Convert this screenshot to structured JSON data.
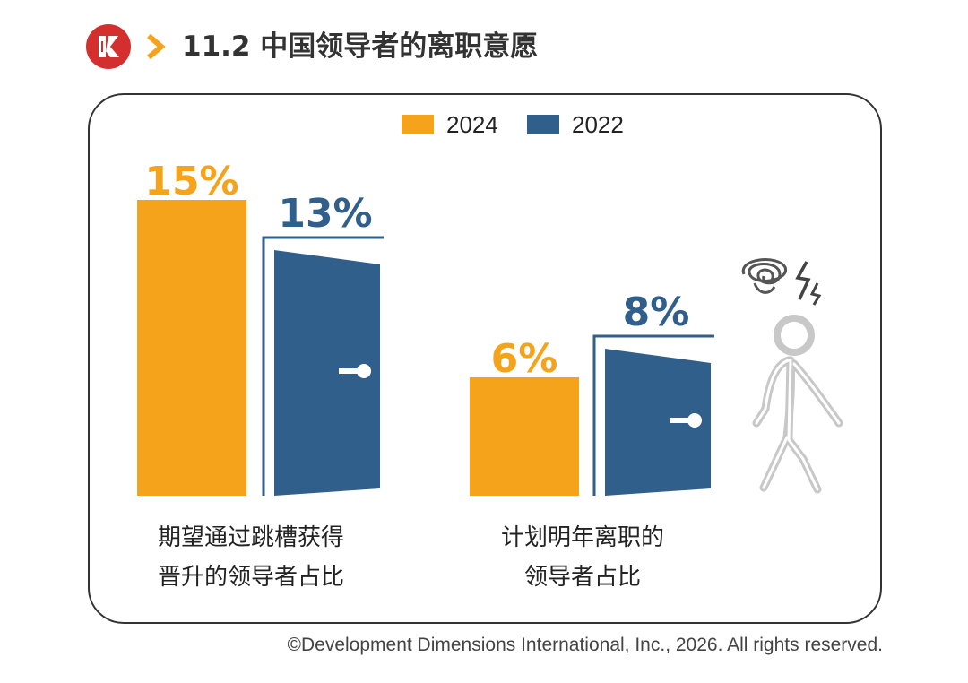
{
  "header": {
    "title": "11.2 中国领导者的离职意愿",
    "logo_icon": "ddi-logo-icon",
    "chevron_icon": "chevron-right-icon"
  },
  "colors": {
    "y2024": "#f5a31a",
    "y2022": "#2f5f8a",
    "logo": "#d32f2f",
    "chevron": "#f5a31a"
  },
  "chart_data": {
    "type": "bar",
    "categories": [
      "期望通过跳槽获得\n晋升的领导者占比",
      "计划明年离职的\n领导者占比"
    ],
    "series": [
      {
        "name": "2024",
        "values": [
          15,
          6
        ]
      },
      {
        "name": "2022",
        "values": [
          13,
          8
        ]
      }
    ],
    "unit": "%",
    "legend": "top-center"
  },
  "captions": [
    [
      "期望通过跳槽获得",
      "晋升的领导者占比"
    ],
    [
      "计划明年离职的",
      "领导者占比"
    ]
  ],
  "icons": [
    "door-icon",
    "stressed-walking-person-icon"
  ],
  "footer": {
    "copyright": "©Development Dimensions International, Inc., 2026. All rights reserved."
  }
}
